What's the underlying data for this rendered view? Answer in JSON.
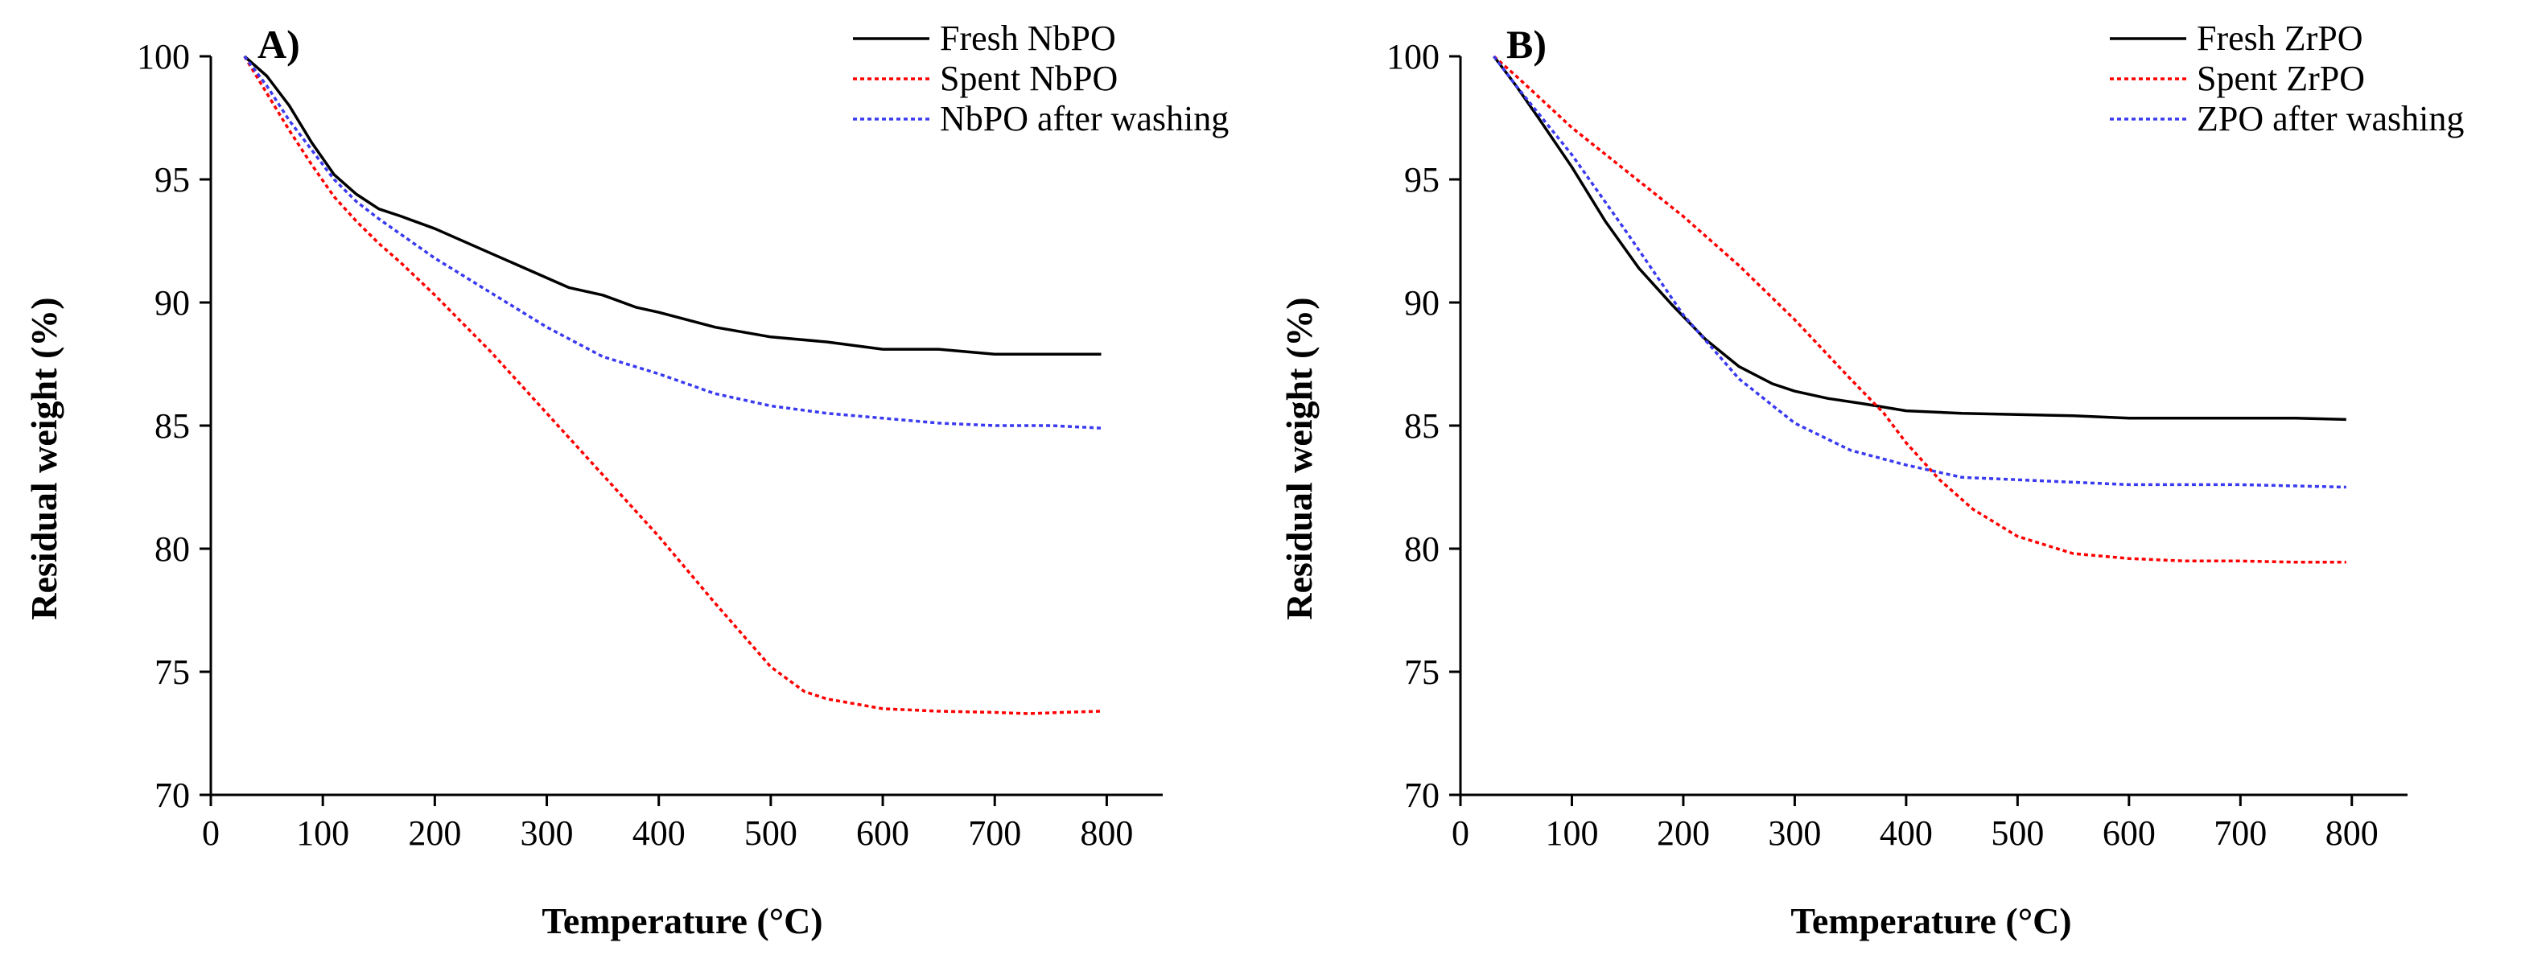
{
  "chart_data": [
    {
      "type": "line",
      "panel_label": "A)",
      "xlabel": "Temperature (°C)",
      "ylabel": "Residual weight  (%)",
      "xlim": [
        0,
        850
      ],
      "ylim": [
        70,
        100
      ],
      "xticks": [
        0,
        100,
        200,
        300,
        400,
        500,
        600,
        700,
        800
      ],
      "yticks": [
        70,
        75,
        80,
        85,
        90,
        95,
        100
      ],
      "legend_position": "top-right",
      "series": [
        {
          "name": "Fresh NbPO",
          "color": "#000000",
          "dash": "solid",
          "x": [
            30,
            50,
            70,
            90,
            110,
            130,
            150,
            170,
            200,
            250,
            300,
            320,
            350,
            380,
            400,
            450,
            500,
            550,
            600,
            650,
            700,
            750,
            795
          ],
          "y": [
            100,
            99.2,
            98.0,
            96.5,
            95.2,
            94.4,
            93.8,
            93.5,
            93.0,
            92.0,
            91.0,
            90.6,
            90.3,
            89.8,
            89.6,
            89.0,
            88.6,
            88.4,
            88.1,
            88.1,
            87.9,
            87.9,
            87.9
          ]
        },
        {
          "name": "Spent NbPO",
          "color": "#ff0000",
          "dash": "dotted",
          "x": [
            30,
            50,
            70,
            90,
            110,
            130,
            150,
            170,
            200,
            250,
            300,
            350,
            400,
            450,
            500,
            530,
            550,
            600,
            650,
            700,
            730,
            760,
            795
          ],
          "y": [
            100,
            98.5,
            97.0,
            95.6,
            94.3,
            93.3,
            92.4,
            91.6,
            90.3,
            88.0,
            85.5,
            83.0,
            80.5,
            77.8,
            75.2,
            74.2,
            73.9,
            73.5,
            73.4,
            73.35,
            73.3,
            73.35,
            73.4
          ]
        },
        {
          "name": "NbPO after washing",
          "color": "#3a3af0",
          "dash": "dotted",
          "x": [
            30,
            50,
            70,
            90,
            110,
            130,
            150,
            200,
            250,
            300,
            350,
            400,
            450,
            500,
            550,
            600,
            650,
            700,
            750,
            795
          ],
          "y": [
            100,
            98.8,
            97.4,
            96.2,
            95.0,
            94.1,
            93.4,
            91.8,
            90.4,
            89.0,
            87.8,
            87.1,
            86.3,
            85.8,
            85.5,
            85.3,
            85.1,
            85.0,
            85.0,
            84.9
          ]
        }
      ]
    },
    {
      "type": "line",
      "panel_label": "B)",
      "xlabel": "Temperature (°C)",
      "ylabel": "Residual weight  (%)",
      "xlim": [
        0,
        850
      ],
      "ylim": [
        70,
        100
      ],
      "xticks": [
        0,
        100,
        200,
        300,
        400,
        500,
        600,
        700,
        800
      ],
      "yticks": [
        70,
        75,
        80,
        85,
        90,
        95,
        100
      ],
      "legend_position": "top-right",
      "series": [
        {
          "name": "Fresh ZrPO",
          "color": "#000000",
          "dash": "solid",
          "x": [
            30,
            50,
            70,
            100,
            130,
            160,
            190,
            220,
            250,
            280,
            300,
            330,
            360,
            400,
            450,
            500,
            550,
            600,
            650,
            700,
            750,
            795
          ],
          "y": [
            100,
            98.8,
            97.5,
            95.5,
            93.3,
            91.4,
            89.9,
            88.5,
            87.4,
            86.7,
            86.4,
            86.1,
            85.9,
            85.6,
            85.5,
            85.45,
            85.4,
            85.3,
            85.3,
            85.3,
            85.3,
            85.25
          ]
        },
        {
          "name": "Spent ZrPO",
          "color": "#ff0000",
          "dash": "dotted",
          "x": [
            30,
            50,
            100,
            150,
            200,
            250,
            300,
            350,
            380,
            400,
            430,
            460,
            500,
            550,
            600,
            650,
            700,
            750,
            795
          ],
          "y": [
            100,
            99.2,
            97.1,
            95.3,
            93.5,
            91.5,
            89.3,
            86.9,
            85.5,
            84.3,
            82.8,
            81.6,
            80.5,
            79.8,
            79.6,
            79.5,
            79.5,
            79.45,
            79.45
          ]
        },
        {
          "name": "ZPO after washing",
          "color": "#3a3af0",
          "dash": "dotted",
          "x": [
            30,
            50,
            100,
            150,
            200,
            250,
            300,
            350,
            400,
            450,
            500,
            550,
            600,
            650,
            700,
            750,
            795
          ],
          "y": [
            100,
            98.8,
            96.0,
            92.8,
            89.5,
            86.9,
            85.1,
            84.0,
            83.4,
            82.9,
            82.8,
            82.7,
            82.6,
            82.6,
            82.6,
            82.55,
            82.5
          ]
        }
      ]
    }
  ]
}
